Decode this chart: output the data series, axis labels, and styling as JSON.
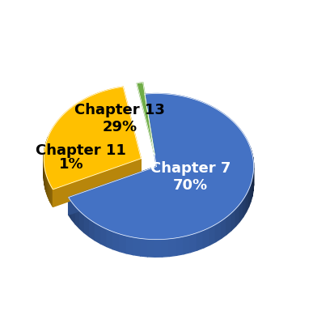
{
  "labels": [
    "Chapter 7",
    "Chapter 13",
    "Chapter 11"
  ],
  "values": [
    70,
    29,
    1
  ],
  "colors": [
    "#4472C4",
    "#FFC000",
    "#70AD47"
  ],
  "dark_colors": [
    "#2E4F8A",
    "#B8860B",
    "#3D7A1E"
  ],
  "explode": [
    0.0,
    0.18,
    0.12
  ],
  "label_colors": [
    "white",
    "black",
    "black"
  ],
  "label_fontsize": 13,
  "start_angle": 97,
  "figsize": [
    3.87,
    4.06
  ],
  "dpi": 100,
  "depth": 0.18
}
